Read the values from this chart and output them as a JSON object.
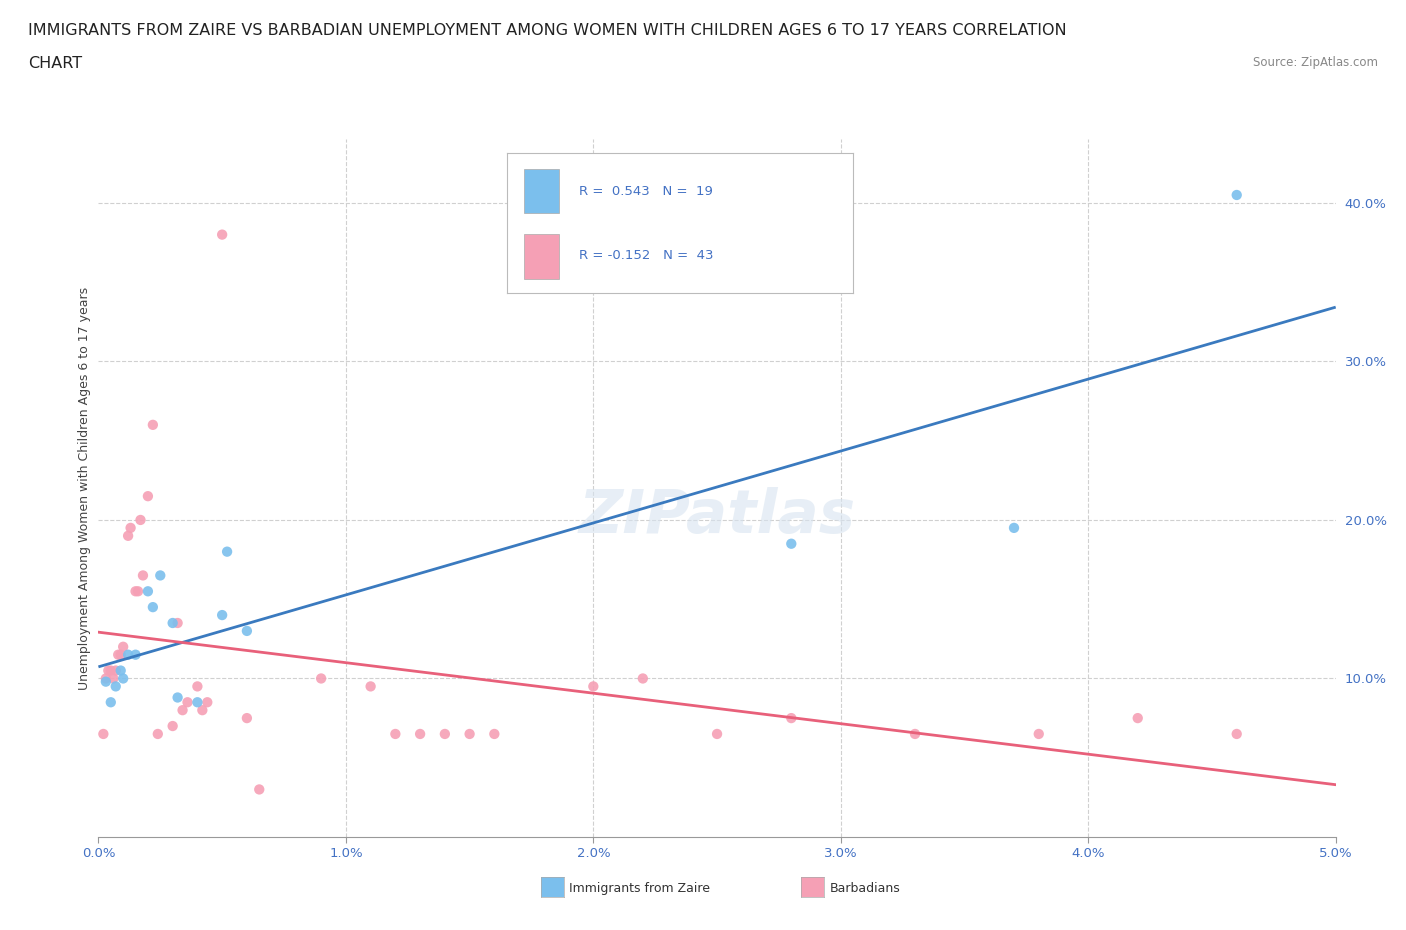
{
  "title_line1": "IMMIGRANTS FROM ZAIRE VS BARBADIAN UNEMPLOYMENT AMONG WOMEN WITH CHILDREN AGES 6 TO 17 YEARS CORRELATION",
  "title_line2": "CHART",
  "source": "Source: ZipAtlas.com",
  "xlim": [
    0.0,
    0.05
  ],
  "ylim": [
    -0.02,
    0.44
  ],
  "plot_ylim": [
    0.0,
    0.44
  ],
  "watermark": "ZIPatlas",
  "zaire_points": [
    [
      0.0003,
      0.098
    ],
    [
      0.0005,
      0.085
    ],
    [
      0.0007,
      0.095
    ],
    [
      0.0009,
      0.105
    ],
    [
      0.001,
      0.1
    ],
    [
      0.0012,
      0.115
    ],
    [
      0.0015,
      0.115
    ],
    [
      0.002,
      0.155
    ],
    [
      0.0022,
      0.145
    ],
    [
      0.0025,
      0.165
    ],
    [
      0.003,
      0.135
    ],
    [
      0.0032,
      0.088
    ],
    [
      0.004,
      0.085
    ],
    [
      0.005,
      0.14
    ],
    [
      0.0052,
      0.18
    ],
    [
      0.006,
      0.13
    ],
    [
      0.028,
      0.185
    ],
    [
      0.037,
      0.195
    ],
    [
      0.046,
      0.405
    ]
  ],
  "barbadian_points": [
    [
      0.0002,
      0.065
    ],
    [
      0.0003,
      0.1
    ],
    [
      0.0004,
      0.105
    ],
    [
      0.0005,
      0.105
    ],
    [
      0.0006,
      0.1
    ],
    [
      0.0007,
      0.105
    ],
    [
      0.0008,
      0.115
    ],
    [
      0.0009,
      0.115
    ],
    [
      0.001,
      0.12
    ],
    [
      0.0012,
      0.19
    ],
    [
      0.0013,
      0.195
    ],
    [
      0.0015,
      0.155
    ],
    [
      0.0016,
      0.155
    ],
    [
      0.0017,
      0.2
    ],
    [
      0.0018,
      0.165
    ],
    [
      0.002,
      0.215
    ],
    [
      0.0022,
      0.26
    ],
    [
      0.0024,
      0.065
    ],
    [
      0.003,
      0.07
    ],
    [
      0.0032,
      0.135
    ],
    [
      0.0034,
      0.08
    ],
    [
      0.0036,
      0.085
    ],
    [
      0.004,
      0.095
    ],
    [
      0.0042,
      0.08
    ],
    [
      0.0044,
      0.085
    ],
    [
      0.005,
      0.38
    ],
    [
      0.006,
      0.075
    ],
    [
      0.0065,
      0.03
    ],
    [
      0.009,
      0.1
    ],
    [
      0.011,
      0.095
    ],
    [
      0.012,
      0.065
    ],
    [
      0.013,
      0.065
    ],
    [
      0.014,
      0.065
    ],
    [
      0.015,
      0.065
    ],
    [
      0.016,
      0.065
    ],
    [
      0.02,
      0.095
    ],
    [
      0.022,
      0.1
    ],
    [
      0.025,
      0.065
    ],
    [
      0.028,
      0.075
    ],
    [
      0.033,
      0.065
    ],
    [
      0.038,
      0.065
    ],
    [
      0.042,
      0.075
    ],
    [
      0.046,
      0.065
    ]
  ],
  "zaire_color": "#7bbfed",
  "barbadian_color": "#f5a0b5",
  "zaire_line_color": "#3a7abf",
  "barbadian_line_color": "#e8607a",
  "grid_color": "#d0d0d0",
  "tick_color": "#4472c4",
  "title_fontsize": 11.5,
  "axis_label_fontsize": 9,
  "tick_fontsize": 9.5,
  "ylabel": "Unemployment Among Women with Children Ages 6 to 17 years",
  "zaire_R": 0.543,
  "zaire_N": 19,
  "barb_R": -0.152,
  "barb_N": 43
}
